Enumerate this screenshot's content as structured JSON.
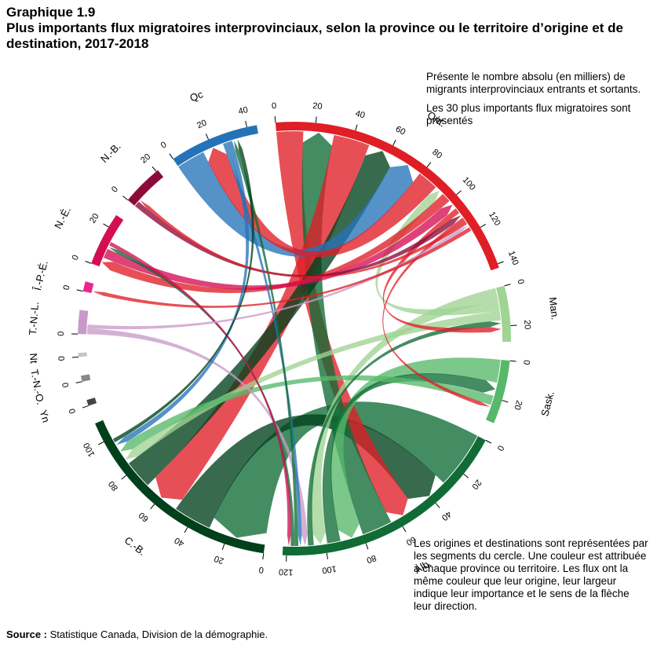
{
  "title": {
    "label": "Graphique 1.9",
    "text": "Plus importants flux migratoires interprovinciaux, selon la province ou le territoire d’origine et de destination, 2017-2018"
  },
  "notes": {
    "top_1": "Présente le nombre absolu (en milliers) de migrants interprovinciaux entrants et sortants.",
    "top_2": "Les 30 plus importants flux migratoires sont présentés",
    "bottom": "Les origines et destinations sont représentées par les segments du cercle. Une couleur est attribuée à chaque province ou territoire. Les flux ont la même couleur que leur origine, leur largeur indique leur importance et le sens de la flèche leur direction."
  },
  "source": {
    "label": "Source :",
    "text": "Statistique Canada, Division de la démographie."
  },
  "chart_data": {
    "type": "chord",
    "units": "milliers de migrants",
    "segments": [
      {
        "name": "Ont.",
        "total": 142,
        "color": "#e01e26",
        "ticks": [
          0,
          20,
          40,
          60,
          80,
          100,
          120,
          140
        ]
      },
      {
        "name": "Man.",
        "total": 28,
        "color": "#9fd494",
        "ticks": [
          0,
          20
        ]
      },
      {
        "name": "Sask.",
        "total": 32,
        "color": "#57b86a",
        "ticks": [
          0,
          20
        ]
      },
      {
        "name": "Alb.",
        "total": 122,
        "color": "#106b35",
        "ticks": [
          0,
          20,
          40,
          60,
          80,
          100,
          120
        ]
      },
      {
        "name": "C.-B.",
        "total": 110,
        "color": "#00401b",
        "ticks": [
          0,
          20,
          40,
          60,
          80,
          100
        ]
      },
      {
        "name": "Yn",
        "total": 3,
        "color": "#444444",
        "ticks": [
          0
        ]
      },
      {
        "name": "T.-N.-O.",
        "total": 3,
        "color": "#888888",
        "ticks": [
          0
        ]
      },
      {
        "name": "Nt",
        "total": 2,
        "color": "#c4c4c4",
        "ticks": [
          0
        ]
      },
      {
        "name": "T.-N.-L.",
        "total": 12,
        "color": "#c99ac9",
        "ticks": [
          0
        ]
      },
      {
        "name": "Î.-P.-É.",
        "total": 5,
        "color": "#e8278f",
        "ticks": [
          0
        ]
      },
      {
        "name": "N.-É.",
        "total": 27,
        "color": "#d40e53",
        "ticks": [
          0,
          20
        ]
      },
      {
        "name": "N.-B.",
        "total": 21,
        "color": "#8c0a3a",
        "ticks": [
          0,
          20
        ]
      },
      {
        "name": "Qc",
        "total": 45,
        "color": "#2473b8",
        "ticks": [
          0,
          20,
          40
        ]
      }
    ],
    "flows": [
      {
        "from": "Alb.",
        "to": "C.-B.",
        "value": 30
      },
      {
        "from": "C.-B.",
        "to": "Alb.",
        "value": 20
      },
      {
        "from": "Ont.",
        "to": "Alb.",
        "value": 14
      },
      {
        "from": "Alb.",
        "to": "Ont.",
        "value": 16
      },
      {
        "from": "Ont.",
        "to": "C.-B.",
        "value": 19
      },
      {
        "from": "C.-B.",
        "to": "Ont.",
        "value": 15
      },
      {
        "from": "Qc",
        "to": "Ont.",
        "value": 15
      },
      {
        "from": "Ont.",
        "to": "Qc",
        "value": 11
      },
      {
        "from": "Sask.",
        "to": "Alb.",
        "value": 12
      },
      {
        "from": "Alb.",
        "to": "Sask.",
        "value": 7
      },
      {
        "from": "Man.",
        "to": "Alb.",
        "value": 7
      },
      {
        "from": "Man.",
        "to": "Ont.",
        "value": 5
      },
      {
        "from": "Man.",
        "to": "C.-B.",
        "value": 5
      },
      {
        "from": "Sask.",
        "to": "C.-B.",
        "value": 5
      },
      {
        "from": "Ont.",
        "to": "N.-É.",
        "value": 5
      },
      {
        "from": "N.-É.",
        "to": "Ont.",
        "value": 5
      },
      {
        "from": "Alb.",
        "to": "Man.",
        "value": 3
      },
      {
        "from": "Ont.",
        "to": "Man.",
        "value": 3
      },
      {
        "from": "T.-N.-L.",
        "to": "Alb.",
        "value": 3
      },
      {
        "from": "N.-B.",
        "to": "Ont.",
        "value": 3
      },
      {
        "from": "Ont.",
        "to": "Sask.",
        "value": 2
      },
      {
        "from": "Qc",
        "to": "Alb.",
        "value": 2
      },
      {
        "from": "Qc",
        "to": "C.-B.",
        "value": 3
      },
      {
        "from": "Alb.",
        "to": "Qc",
        "value": 2
      },
      {
        "from": "Alb.",
        "to": "N.-É.",
        "value": 2
      },
      {
        "from": "N.-É.",
        "to": "Alb.",
        "value": 2
      },
      {
        "from": "Ont.",
        "to": "N.-B.",
        "value": 2
      },
      {
        "from": "T.-N.-L.",
        "to": "Ont.",
        "value": 2
      },
      {
        "from": "Ont.",
        "to": "Î.-P.-É.",
        "value": 2
      },
      {
        "from": "C.-B.",
        "to": "Qc",
        "value": 2
      }
    ]
  }
}
